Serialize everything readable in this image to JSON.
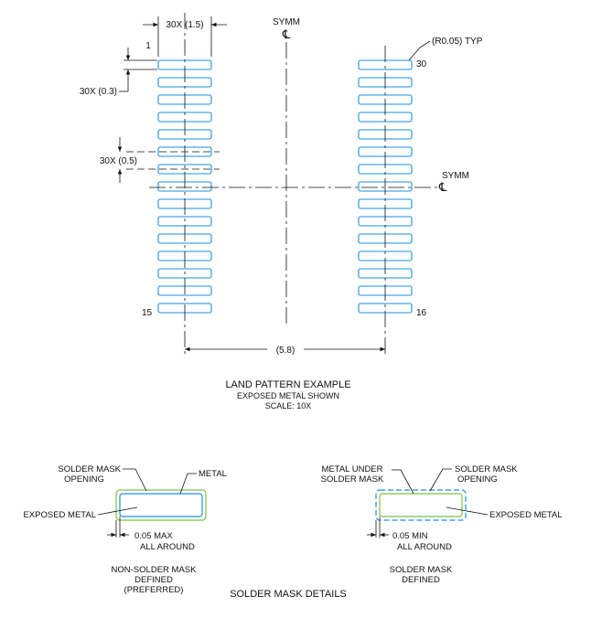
{
  "land_pattern": {
    "pad_width_dim": "30X (1.5)",
    "pad_edge_dim": "1",
    "pad_height_dim": "30X (0.3)",
    "pitch_dim": "30X (0.5)",
    "span_dim": "(5.8)",
    "corner_radius": "(R0.05) TYP",
    "symm_label": "SYMM",
    "centerline_symbol": "℄",
    "pin_first": "15",
    "pin_16": "16",
    "pin_30": "30",
    "pads_per_column": 15,
    "title": "LAND PATTERN EXAMPLE",
    "subtitle": "EXPOSED METAL SHOWN",
    "scale": "SCALE: 10X"
  },
  "solder_mask_details": {
    "title": "SOLDER MASK DETAILS",
    "nsmd": {
      "label_opening_line1": "SOLDER MASK",
      "label_opening_line2": "OPENING",
      "label_metal": "METAL",
      "label_exposed": "EXPOSED METAL",
      "clearance_line1": "0.05 MAX",
      "clearance_line2": "ALL AROUND",
      "caption_line1": "NON-SOLDER MASK",
      "caption_line2": "DEFINED",
      "caption_line3": "(PREFERRED)"
    },
    "smd": {
      "label_metal_under_line1": "METAL UNDER",
      "label_metal_under_line2": "SOLDER MASK",
      "label_opening_line1": "SOLDER MASK",
      "label_opening_line2": "OPENING",
      "label_exposed": "EXPOSED METAL",
      "clearance_line1": "0.05 MIN",
      "clearance_line2": "ALL AROUND",
      "caption_line1": "SOLDER MASK",
      "caption_line2": "DEFINED"
    }
  },
  "colors": {
    "pad_outline": "#1a8fe0",
    "solder_mask": "#7fc241",
    "line": "#111111"
  }
}
